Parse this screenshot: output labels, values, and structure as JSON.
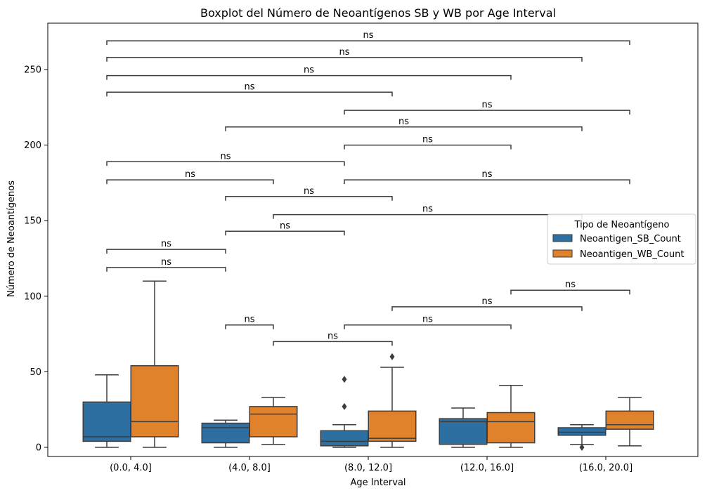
{
  "chart_data": {
    "type": "boxplot",
    "title": "Boxplot del Número de Neoantígenos SB y WB por Age Interval",
    "xlabel": "Age Interval",
    "ylabel": "Número de Neoantígenos",
    "categories": [
      "(0.0, 4.0]",
      "(4.0, 8.0]",
      "(8.0, 12.0]",
      "(12.0, 16.0]",
      "(16.0, 20.0]"
    ],
    "ylim": [
      -5,
      280
    ],
    "yticks": [
      0,
      50,
      100,
      150,
      200,
      250
    ],
    "legend": {
      "title": "Tipo de Neoantígeno",
      "position": "center-right"
    },
    "series": [
      {
        "name": "Neoantigen_SB_Count",
        "color": "#2d6fa1",
        "boxes": [
          {
            "whislo": 0,
            "q1": 4,
            "med": 7,
            "q3": 30,
            "whishi": 48,
            "fliers": []
          },
          {
            "whislo": 0,
            "q1": 3,
            "med": 13,
            "q3": 16,
            "whishi": 18,
            "fliers": []
          },
          {
            "whislo": 0,
            "q1": 1,
            "med": 4,
            "q3": 11,
            "whishi": 15,
            "fliers": [
              27,
              45
            ]
          },
          {
            "whislo": 0,
            "q1": 2,
            "med": 17,
            "q3": 19,
            "whishi": 26,
            "fliers": []
          },
          {
            "whislo": 2,
            "q1": 8,
            "med": 10,
            "q3": 13,
            "whishi": 15,
            "fliers": [
              0
            ]
          }
        ]
      },
      {
        "name": "Neoantigen_WB_Count",
        "color": "#e0812c",
        "boxes": [
          {
            "whislo": 0,
            "q1": 7,
            "med": 17,
            "q3": 54,
            "whishi": 110,
            "fliers": []
          },
          {
            "whislo": 2,
            "q1": 7,
            "med": 22,
            "q3": 27,
            "whishi": 33,
            "fliers": []
          },
          {
            "whislo": 0,
            "q1": 4,
            "med": 6,
            "q3": 24,
            "whishi": 53,
            "fliers": [
              60
            ]
          },
          {
            "whislo": 0,
            "q1": 3,
            "med": 17,
            "q3": 23,
            "whishi": 41,
            "fliers": []
          },
          {
            "whislo": 1,
            "q1": 12,
            "med": 15,
            "q3": 24,
            "whishi": 33,
            "fliers": []
          }
        ]
      }
    ],
    "annotations": [
      {
        "from": [
          0,
          0
        ],
        "to": [
          2,
          0
        ],
        "y": 119,
        "text": "ns"
      },
      {
        "from": [
          0,
          1
        ],
        "to": [
          2,
          1
        ],
        "y": 131,
        "text": "ns"
      },
      {
        "from": [
          2,
          1
        ],
        "to": [
          4,
          1
        ],
        "y": 143,
        "text": "ns"
      },
      {
        "from": [
          3,
          0
        ],
        "to": [
          8,
          0
        ],
        "y": 154,
        "text": "ns"
      },
      {
        "from": [
          2,
          0
        ],
        "to": [
          5,
          0
        ],
        "y": 166,
        "text": "ns"
      },
      {
        "from": [
          0,
          0
        ],
        "to": [
          3,
          0
        ],
        "y": 177,
        "text": "ns"
      },
      {
        "from": [
          4,
          1
        ],
        "to": [
          9,
          1
        ],
        "y": 177,
        "text": "ns"
      },
      {
        "from": [
          0,
          1
        ],
        "to": [
          4,
          1
        ],
        "y": 189,
        "text": "ns"
      },
      {
        "from": [
          4,
          0
        ],
        "to": [
          7,
          0
        ],
        "y": 200,
        "text": "ns"
      },
      {
        "from": [
          2,
          0
        ],
        "to": [
          8,
          0
        ],
        "y": 212,
        "text": "ns"
      },
      {
        "from": [
          4,
          1
        ],
        "to": [
          9,
          1
        ],
        "y": 223,
        "text": "ns"
      },
      {
        "from": [
          0,
          0
        ],
        "to": [
          5,
          0
        ],
        "y": 235,
        "text": "ns"
      },
      {
        "from": [
          0,
          1
        ],
        "to": [
          7,
          0
        ],
        "y": 246,
        "text": "ns"
      },
      {
        "from": [
          0,
          0
        ],
        "to": [
          8,
          0
        ],
        "y": 258,
        "text": "ns"
      },
      {
        "from": [
          0,
          1
        ],
        "to": [
          9,
          1
        ],
        "y": 269,
        "text": "ns"
      },
      {
        "from": [
          2,
          0
        ],
        "to": [
          3,
          0
        ],
        "y": 81,
        "text": "ns"
      },
      {
        "from": [
          3,
          0
        ],
        "to": [
          5,
          0
        ],
        "y": 70,
        "text": "ns"
      },
      {
        "from": [
          4,
          1
        ],
        "to": [
          7,
          0
        ],
        "y": 81,
        "text": "ns"
      },
      {
        "from": [
          5,
          0
        ],
        "to": [
          8,
          0
        ],
        "y": 93,
        "text": "ns"
      },
      {
        "from": [
          7,
          0
        ],
        "to": [
          9,
          1
        ],
        "y": 104,
        "text": "ns"
      }
    ]
  }
}
